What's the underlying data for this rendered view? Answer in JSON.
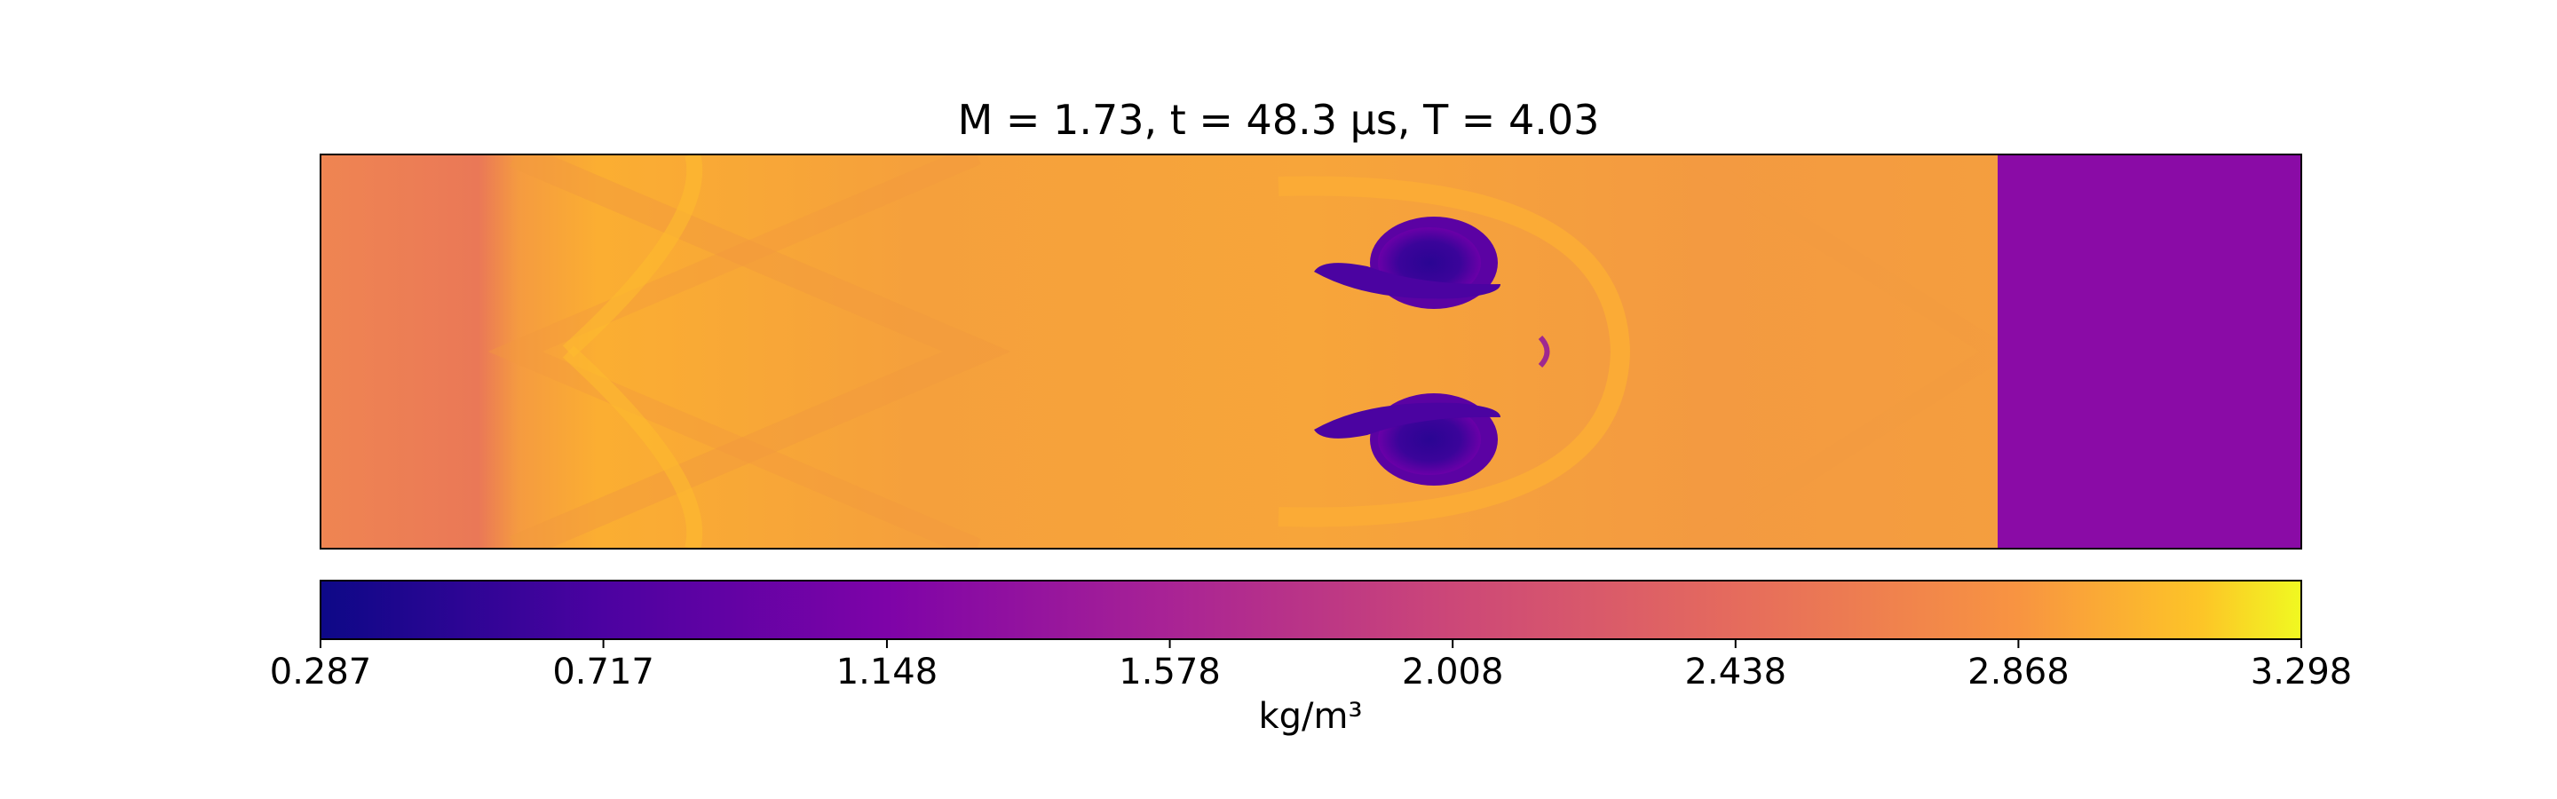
{
  "chart_data": {
    "type": "heatmap",
    "title": "M = 1.73, t = 48.3 μs, T = 4.03",
    "colormap": "plasma",
    "colorbar": {
      "min": 0.287,
      "max": 3.298,
      "ticks": [
        "0.287",
        "0.717",
        "1.148",
        "1.578",
        "2.008",
        "2.438",
        "2.868",
        "3.298"
      ],
      "label": "kg/m³",
      "placement": "bottom"
    },
    "axes_visible": false,
    "features": {
      "shocked_gas_density": 2.5,
      "unshocked_gas_density": 1.05,
      "vortex_core_density": 0.35
    }
  }
}
